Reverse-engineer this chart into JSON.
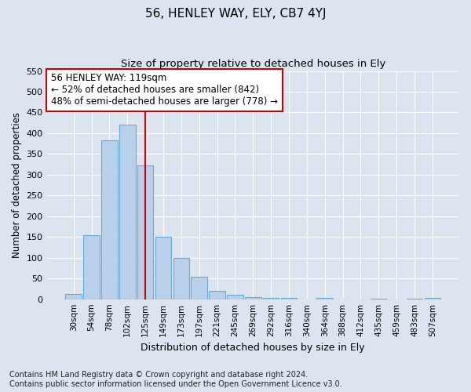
{
  "title": "56, HENLEY WAY, ELY, CB7 4YJ",
  "subtitle": "Size of property relative to detached houses in Ely",
  "xlabel": "Distribution of detached houses by size in Ely",
  "ylabel": "Number of detached properties",
  "categories": [
    "30sqm",
    "54sqm",
    "78sqm",
    "102sqm",
    "125sqm",
    "149sqm",
    "173sqm",
    "197sqm",
    "221sqm",
    "245sqm",
    "269sqm",
    "292sqm",
    "316sqm",
    "340sqm",
    "364sqm",
    "388sqm",
    "412sqm",
    "435sqm",
    "459sqm",
    "483sqm",
    "507sqm"
  ],
  "values": [
    13,
    155,
    383,
    420,
    323,
    150,
    100,
    55,
    20,
    10,
    6,
    4,
    4,
    0,
    3,
    0,
    0,
    2,
    0,
    2,
    3
  ],
  "bar_color": "#b8d0ea",
  "bar_edge_color": "#6aaad4",
  "vline_color": "#cc0000",
  "annotation_text": "56 HENLEY WAY: 119sqm\n← 52% of detached houses are smaller (842)\n48% of semi-detached houses are larger (778) →",
  "annotation_box_color": "#ffffff",
  "annotation_box_edge_color": "#cc0000",
  "ylim": [
    0,
    550
  ],
  "yticks": [
    0,
    50,
    100,
    150,
    200,
    250,
    300,
    350,
    400,
    450,
    500,
    550
  ],
  "footnote": "Contains HM Land Registry data © Crown copyright and database right 2024.\nContains public sector information licensed under the Open Government Licence v3.0.",
  "background_color": "#dce4f0",
  "plot_background_color": "#dce4f0",
  "grid_color": "#ffffff",
  "title_fontsize": 11,
  "subtitle_fontsize": 9.5,
  "annotation_fontsize": 8.5,
  "footnote_fontsize": 7,
  "xlabel_fontsize": 9,
  "ylabel_fontsize": 8.5,
  "tick_fontsize": 8,
  "xtick_fontsize": 7.5
}
